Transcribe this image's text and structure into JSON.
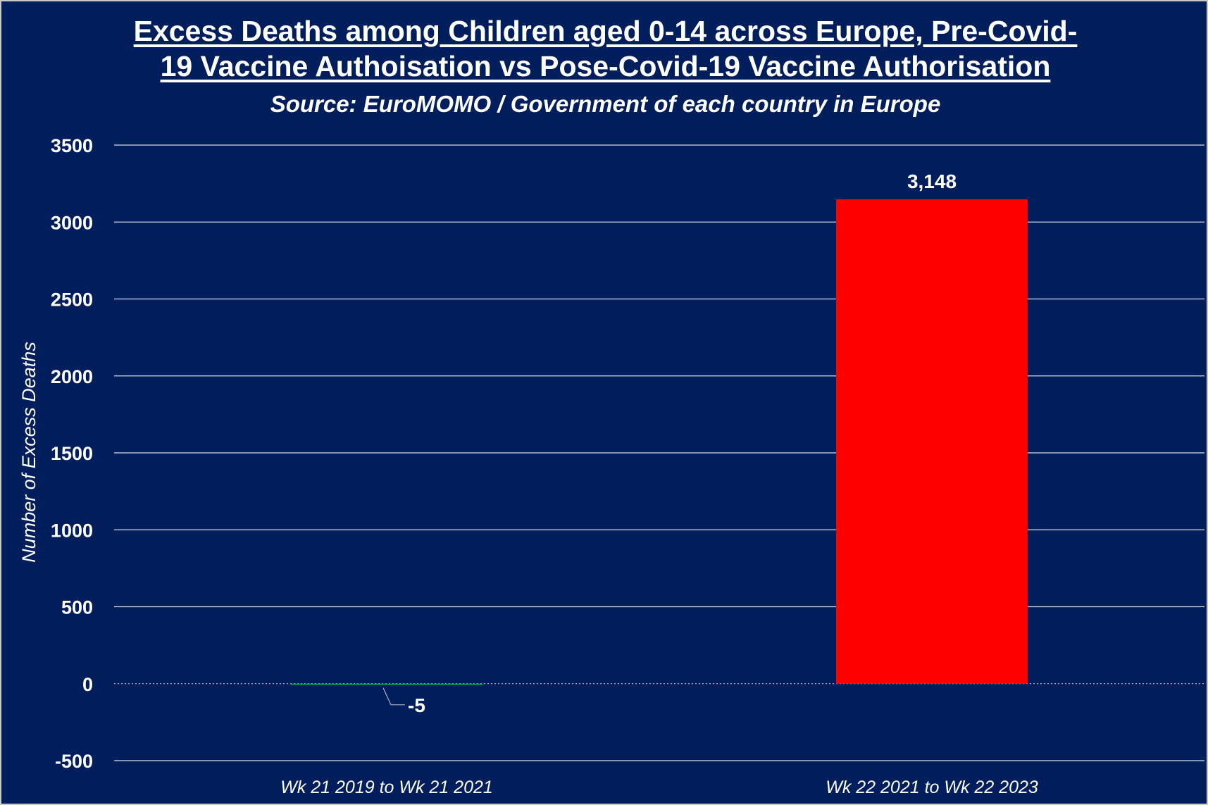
{
  "chart_data": {
    "type": "bar",
    "title_line1": "Excess Deaths among Children aged 0-14 across Europe, Pre-Covid-",
    "title_line2": "19 Vaccine Authoisation vs Pose-Covid-19 Vaccine Authorisation",
    "subtitle": "Source: EuroMOMO / Government of each country in Europe",
    "xlabel": "",
    "ylabel": "Number of Excess Deaths",
    "categories": [
      "Wk 21 2019 to Wk 21 2021",
      "Wk 22 2021 to Wk 22 2023"
    ],
    "values": [
      -5,
      3148
    ],
    "data_labels": [
      "-5",
      "3,148"
    ],
    "bar_colors": [
      "#00b050",
      "#ff0000"
    ],
    "ylim": [
      -500,
      3500
    ],
    "yticks": [
      -500,
      0,
      500,
      1000,
      1500,
      2000,
      2500,
      3000,
      3500
    ],
    "grid": true,
    "legend": "none",
    "colors": {
      "background": "#001e5c",
      "text": "#ffffff",
      "gridline": "#ffffff"
    }
  }
}
